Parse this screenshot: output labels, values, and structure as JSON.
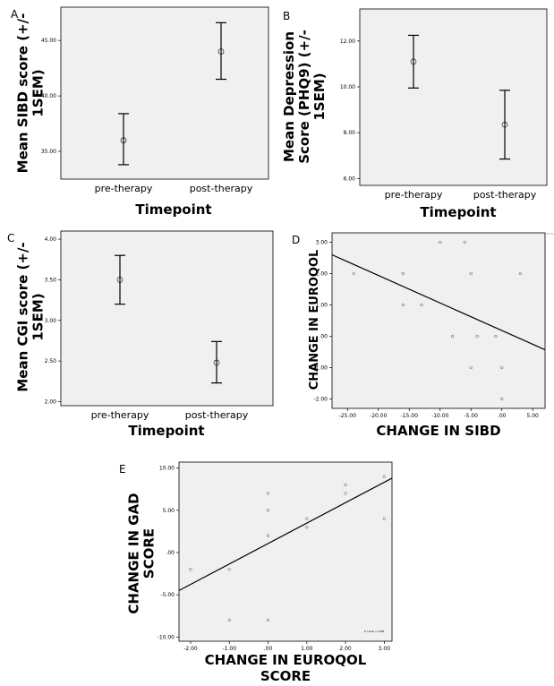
{
  "chart_data": [
    {
      "panel": "A",
      "type": "errorbar",
      "categories": [
        "pre-therapy",
        "post-therapy"
      ],
      "means": [
        36.0,
        44.0
      ],
      "lower": [
        33.8,
        41.5
      ],
      "upper": [
        38.4,
        46.6
      ],
      "ylim": [
        32.5,
        48.0
      ],
      "yticks": [
        "35.00",
        "40.00",
        "45.00"
      ],
      "ytick_values": [
        35,
        40,
        45
      ],
      "xlabel": "Timepoint",
      "ylabel_lines": [
        "Mean SIBD score (+/-",
        "1SEM)"
      ]
    },
    {
      "panel": "B",
      "type": "errorbar",
      "categories": [
        "pre-therapy",
        "post-therapy"
      ],
      "means": [
        11.1,
        8.35
      ],
      "lower": [
        9.95,
        6.85
      ],
      "upper": [
        12.25,
        9.85
      ],
      "ylim": [
        5.7,
        13.4
      ],
      "yticks": [
        "6.00",
        "8.00",
        "10.00",
        "12.00"
      ],
      "ytick_values": [
        6,
        8,
        10,
        12
      ],
      "xlabel": "Timepoint",
      "ylabel_lines": [
        "Mean Depression",
        "Score (PHQ9) (+/-",
        "1SEM)"
      ]
    },
    {
      "panel": "C",
      "type": "errorbar",
      "categories": [
        "pre-therapy",
        "post-therapy"
      ],
      "means": [
        3.5,
        2.48
      ],
      "lower": [
        3.2,
        2.23
      ],
      "upper": [
        3.8,
        2.74
      ],
      "ylim": [
        1.95,
        4.1
      ],
      "yticks": [
        "2.00",
        "2.50",
        "3.00",
        "3.50",
        "4.00"
      ],
      "ytick_values": [
        2,
        2.5,
        3,
        3.5,
        4
      ],
      "xlabel": "Timepoint",
      "ylabel_lines": [
        "Mean CGI score (+/-",
        "1SEM)"
      ]
    },
    {
      "panel": "D",
      "type": "scatter",
      "points": [
        [
          -24,
          2
        ],
        [
          -16,
          2
        ],
        [
          -16,
          1
        ],
        [
          -13,
          1
        ],
        [
          -10,
          3
        ],
        [
          -8,
          0
        ],
        [
          -6,
          3
        ],
        [
          -5,
          2
        ],
        [
          -5,
          -1
        ],
        [
          -4,
          0
        ],
        [
          -1,
          0
        ],
        [
          0,
          -1
        ],
        [
          0,
          -2
        ],
        [
          3,
          2
        ]
      ],
      "fit_line": [
        [
          -27.5,
          2.6
        ],
        [
          7,
          -0.43
        ]
      ],
      "xlim": [
        -27.5,
        7
      ],
      "ylim": [
        -2.3,
        3.3
      ],
      "xticks": [
        "-25.00",
        "-20.00",
        "-15.00",
        "-10.00",
        "-5.00",
        ".00",
        "5.00"
      ],
      "xtick_values": [
        -25,
        -20,
        -15,
        -10,
        -5,
        0,
        5
      ],
      "yticks": [
        "-2.00",
        "-1.00",
        ".00",
        "1.00",
        "2.00",
        "3.00"
      ],
      "ytick_values": [
        -2,
        -1,
        0,
        1,
        2,
        3
      ],
      "xlabel": "CHANGE IN SIBD",
      "ylabel": "CHANGE IN EUROQOL"
    },
    {
      "panel": "E",
      "type": "scatter",
      "points": [
        [
          -2,
          -2
        ],
        [
          -1,
          -2
        ],
        [
          -1,
          -8
        ],
        [
          0,
          7
        ],
        [
          0,
          5
        ],
        [
          0,
          2
        ],
        [
          0,
          -8
        ],
        [
          1,
          4
        ],
        [
          1,
          3
        ],
        [
          2,
          8
        ],
        [
          2,
          7
        ],
        [
          3,
          9
        ],
        [
          3,
          4
        ]
      ],
      "fit_line": [
        [
          -2.3,
          -4.5
        ],
        [
          3.2,
          8.8
        ]
      ],
      "xlim": [
        -2.3,
        3.2
      ],
      "ylim": [
        -10.5,
        10.7
      ],
      "xticks": [
        "-2.00",
        "-1.00",
        ".00",
        "1.00",
        "2.00",
        "3.00"
      ],
      "xtick_values": [
        -2,
        -1,
        0,
        1,
        2,
        3
      ],
      "yticks": [
        "-10.00",
        "-5.00",
        ".00",
        "5.00",
        "10.00"
      ],
      "ytick_values": [
        -10,
        -5,
        0,
        5,
        10
      ],
      "xlabel_lines": [
        "CHANGE IN EUROQOL",
        "SCORE"
      ],
      "ylabel_lines": [
        "CHANGE IN GAD",
        "SCORE"
      ],
      "legend_text": "R² Linear = 0.408"
    }
  ]
}
